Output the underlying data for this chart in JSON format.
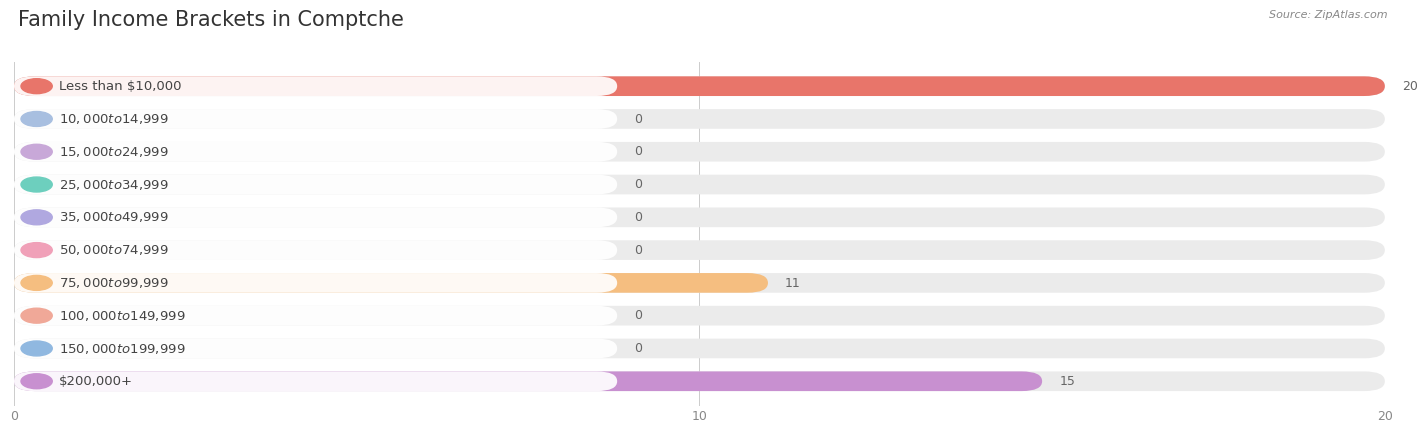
{
  "title": "Family Income Brackets in Comptche",
  "source": "Source: ZipAtlas.com",
  "categories": [
    "Less than $10,000",
    "$10,000 to $14,999",
    "$15,000 to $24,999",
    "$25,000 to $34,999",
    "$35,000 to $49,999",
    "$50,000 to $74,999",
    "$75,000 to $99,999",
    "$100,000 to $149,999",
    "$150,000 to $199,999",
    "$200,000+"
  ],
  "values": [
    20,
    0,
    0,
    0,
    0,
    0,
    11,
    0,
    0,
    15
  ],
  "bar_colors": [
    "#E8756A",
    "#A8BFE0",
    "#C8A8D8",
    "#6DCFBE",
    "#B0A8E0",
    "#F0A0B8",
    "#F5BE80",
    "#F0A898",
    "#90B8E0",
    "#C890D0"
  ],
  "background_color": "#ffffff",
  "bar_bg_color": "#ebebeb",
  "xlim": [
    0,
    20
  ],
  "xticks": [
    0,
    10,
    20
  ],
  "title_fontsize": 15,
  "label_fontsize": 9.5,
  "tick_fontsize": 9,
  "value_fontsize": 9
}
